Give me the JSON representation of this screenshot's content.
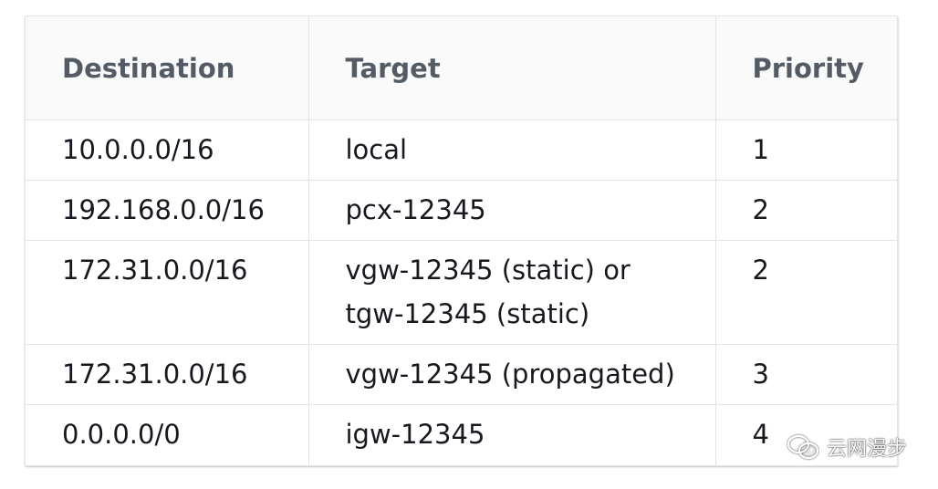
{
  "table": {
    "headers": [
      "Destination",
      "Target",
      "Priority"
    ],
    "rows": [
      {
        "destination": "10.0.0.0/16",
        "target": [
          "local"
        ],
        "priority": "1"
      },
      {
        "destination": "192.168.0.0/16",
        "target": [
          "pcx-12345"
        ],
        "priority": "2"
      },
      {
        "destination": "172.31.0.0/16",
        "target": [
          "vgw-12345 (static) or",
          "tgw-12345 (static)"
        ],
        "priority": "2"
      },
      {
        "destination": "172.31.0.0/16",
        "target": [
          "vgw-12345 (propagated)"
        ],
        "priority": "3"
      },
      {
        "destination": "0.0.0.0/0",
        "target": [
          "igw-12345"
        ],
        "priority": "4"
      }
    ]
  },
  "watermark": {
    "text": "云网漫步",
    "icon": "wechat-icon"
  }
}
